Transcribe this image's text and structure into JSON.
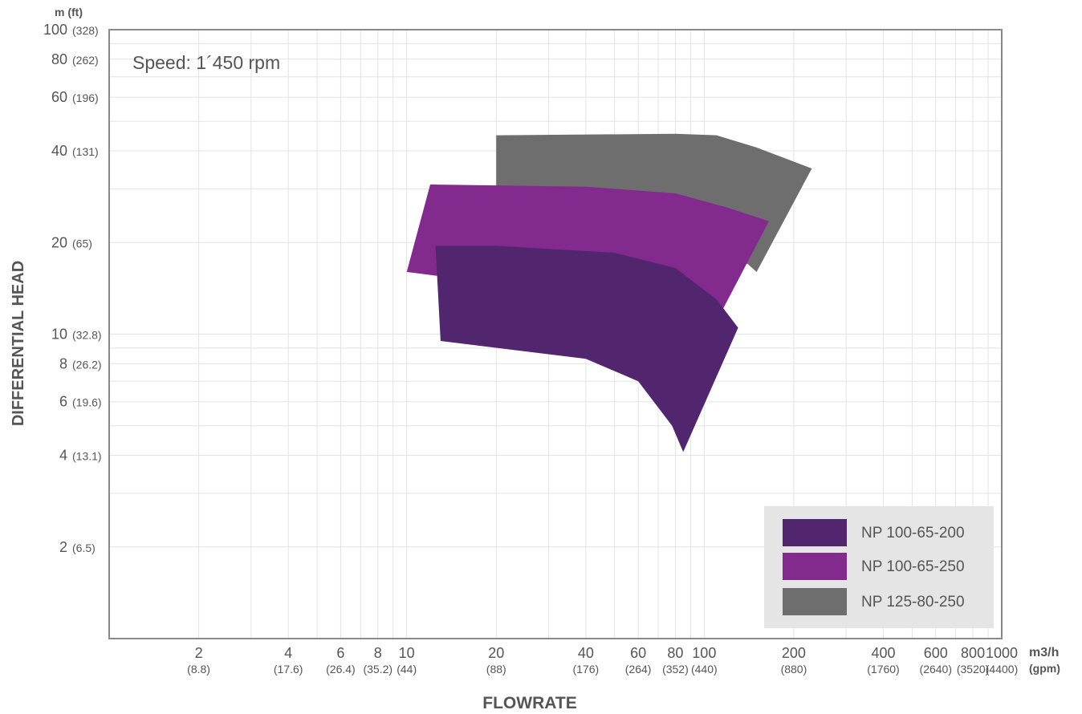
{
  "chart_data": {
    "type": "area",
    "title": "",
    "annotation": "Speed: 1´450 rpm",
    "xlabel": "FLOWRATE",
    "ylabel": "DIFFERENTIAL HEAD",
    "x_scale": "log",
    "y_scale": "log",
    "xlim": [
      1,
      1000
    ],
    "ylim": [
      1,
      100
    ],
    "grid": true,
    "legend_position": "bottom-right",
    "x_unit_primary": "m3/h",
    "x_unit_secondary": "(gpm)",
    "y_unit_header": "m (ft)",
    "y_unit_primary": "m",
    "y_unit_secondary": "(ft)",
    "x_ticks": [
      {
        "value": 2,
        "label": "2",
        "sub": "(8.8)"
      },
      {
        "value": 4,
        "label": "4",
        "sub": "(17.6)"
      },
      {
        "value": 6,
        "label": "6",
        "sub": "(26.4)"
      },
      {
        "value": 8,
        "label": "8",
        "sub": "(35.2)"
      },
      {
        "value": 10,
        "label": "10",
        "sub": "(44)"
      },
      {
        "value": 20,
        "label": "20",
        "sub": "(88)"
      },
      {
        "value": 40,
        "label": "40",
        "sub": "(176)"
      },
      {
        "value": 60,
        "label": "60",
        "sub": "(264)"
      },
      {
        "value": 80,
        "label": "80",
        "sub": "(352)"
      },
      {
        "value": 100,
        "label": "100",
        "sub": "(440)"
      },
      {
        "value": 200,
        "label": "200",
        "sub": "(880)"
      },
      {
        "value": 400,
        "label": "400",
        "sub": "(1760)"
      },
      {
        "value": 600,
        "label": "600",
        "sub": "(2640)"
      },
      {
        "value": 800,
        "label": "800",
        "sub": "(3520)"
      },
      {
        "value": 1000,
        "label": "1000",
        "sub": "(4400)"
      }
    ],
    "y_ticks": [
      {
        "value": 2,
        "label": "2",
        "sub": "(6.5)"
      },
      {
        "value": 4,
        "label": "4",
        "sub": "(13.1)"
      },
      {
        "value": 6,
        "label": "6",
        "sub": "(19.6)"
      },
      {
        "value": 8,
        "label": "8",
        "sub": "(26.2)"
      },
      {
        "value": 10,
        "label": "10",
        "sub": "(32.8)"
      },
      {
        "value": 20,
        "label": "20",
        "sub": "(65)"
      },
      {
        "value": 40,
        "label": "40",
        "sub": "(131)"
      },
      {
        "value": 60,
        "label": "60",
        "sub": "(196)"
      },
      {
        "value": 80,
        "label": "80",
        "sub": "(262)"
      },
      {
        "value": 100,
        "label": "100",
        "sub": "(328)"
      }
    ],
    "series": [
      {
        "name": "NP 125-80-250",
        "color": "#6e6e6e",
        "points": [
          [
            20,
            45
          ],
          [
            80,
            45.5
          ],
          [
            110,
            45
          ],
          [
            150,
            41
          ],
          [
            230,
            35
          ],
          [
            150,
            16
          ],
          [
            140,
            17
          ],
          [
            112,
            17.5
          ],
          [
            20,
            17.5
          ]
        ]
      },
      {
        "name": "NP 100-65-250",
        "color": "#822a8e",
        "points": [
          [
            12,
            31
          ],
          [
            40,
            30.5
          ],
          [
            80,
            29
          ],
          [
            120,
            26
          ],
          [
            165,
            23.5
          ],
          [
            112,
            11.4
          ],
          [
            100,
            12
          ],
          [
            10,
            16
          ]
        ]
      },
      {
        "name": "NP 100-65-200",
        "color": "#52266f",
        "points": [
          [
            12.5,
            19.5
          ],
          [
            20,
            19.5
          ],
          [
            50,
            18.5
          ],
          [
            80,
            16.5
          ],
          [
            110,
            13
          ],
          [
            130,
            10.5
          ],
          [
            85,
            4.1
          ],
          [
            78,
            5
          ],
          [
            60,
            7
          ],
          [
            40,
            8.3
          ],
          [
            13,
            9.5
          ]
        ]
      }
    ]
  }
}
